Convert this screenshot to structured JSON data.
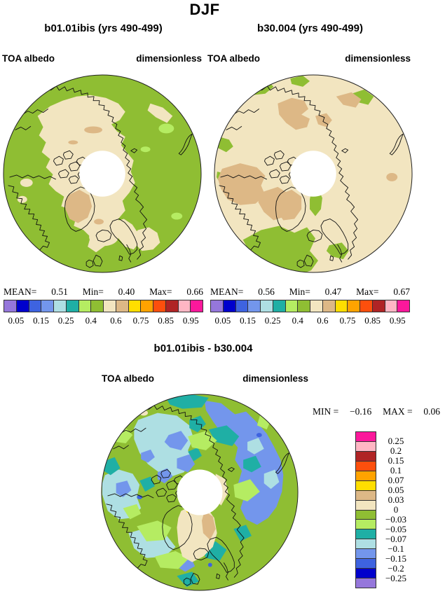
{
  "figure": {
    "title": "DJF"
  },
  "palette": {
    "purple": "#9577DB",
    "dark_blue": "#0000CC",
    "royal_blue": "#3E63E0",
    "cornflower": "#7396EC",
    "pale_cyan": "#AEDFE3",
    "teal": "#1FAFA5",
    "light_green": "#B5EC62",
    "olive_green": "#8FBE33",
    "cream": "#F2E5C0",
    "tan": "#DDB886",
    "yellow": "#FFDE00",
    "orange": "#FFA300",
    "red_orange": "#FD4F0D",
    "dark_red": "#B02425",
    "pink": "#FFB6C4",
    "magenta": "#FB189B"
  },
  "panels": [
    {
      "title": "b01.01ibis (yrs 490-499)",
      "field_label": "TOA albedo",
      "units_label": "dimensionless",
      "stats": {
        "mean_label": "MEAN=",
        "mean": "0.51",
        "min_label": "Min=",
        "min": "0.40",
        "max_label": "Max=",
        "max": "0.66"
      },
      "colorbar": {
        "colors": [
          "#9577DB",
          "#0000CC",
          "#3E63E0",
          "#7396EC",
          "#AEDFE3",
          "#1FAFA5",
          "#B5EC62",
          "#8FBE33",
          "#F2E5C0",
          "#DDB886",
          "#FFDE00",
          "#FFA300",
          "#FD4F0D",
          "#B02425",
          "#FFB6C4",
          "#FB189B"
        ],
        "tick_labels": [
          "0.05",
          "0.15",
          "0.25",
          "0.4",
          "0.6",
          "0.75",
          "0.85",
          "0.95"
        ]
      }
    },
    {
      "title": "b30.004 (yrs 490-499)",
      "field_label": "TOA albedo",
      "units_label": "dimensionless",
      "stats": {
        "mean_label": "MEAN=",
        "mean": "0.56",
        "min_label": "Min=",
        "min": "0.47",
        "max_label": "Max=",
        "max": "0.67"
      },
      "colorbar": {
        "colors": [
          "#9577DB",
          "#0000CC",
          "#3E63E0",
          "#7396EC",
          "#AEDFE3",
          "#1FAFA5",
          "#B5EC62",
          "#8FBE33",
          "#F2E5C0",
          "#DDB886",
          "#FFDE00",
          "#FFA300",
          "#FD4F0D",
          "#B02425",
          "#FFB6C4",
          "#FB189B"
        ],
        "tick_labels": [
          "0.05",
          "0.15",
          "0.25",
          "0.4",
          "0.6",
          "0.75",
          "0.85",
          "0.95"
        ]
      }
    }
  ],
  "diff_panel": {
    "title": "b01.01ibis - b30.004",
    "field_label": "TOA albedo",
    "units_label": "dimensionless",
    "stats": {
      "min_label": "MIN =",
      "min": "−0.16",
      "max_label": "MAX =",
      "max": "0.06"
    },
    "colorbar": {
      "colors": [
        "#FB189B",
        "#FFB6C4",
        "#B02425",
        "#FD4F0D",
        "#FFA300",
        "#FFDE00",
        "#DDB886",
        "#F2E5C0",
        "#8FBE33",
        "#B5EC62",
        "#1FAFA5",
        "#AEDFE3",
        "#7396EC",
        "#3E63E0",
        "#0000CC",
        "#9577DB"
      ],
      "tick_labels": [
        "0.25",
        "0.2",
        "0.15",
        "0.1",
        "0.07",
        "0.05",
        "0.03",
        "0",
        "−0.03",
        "−0.05",
        "−0.07",
        "−0.1",
        "−0.15",
        "−0.2",
        "−0.25"
      ]
    }
  },
  "chart_data": {
    "type": "heatmap",
    "subtype": "polar-stereographic-map-panels",
    "season": "DJF",
    "panels": [
      {
        "name": "b01.01ibis (yrs 490-499)",
        "variable": "TOA albedo",
        "units": "dimensionless",
        "mean": 0.51,
        "min": 0.4,
        "max": 0.66,
        "colorbar_ticks": [
          0.05,
          0.15,
          0.25,
          0.4,
          0.6,
          0.75,
          0.85,
          0.95
        ],
        "legend_position": "bottom"
      },
      {
        "name": "b30.004 (yrs 490-499)",
        "variable": "TOA albedo",
        "units": "dimensionless",
        "mean": 0.56,
        "min": 0.47,
        "max": 0.67,
        "colorbar_ticks": [
          0.05,
          0.15,
          0.25,
          0.4,
          0.6,
          0.75,
          0.85,
          0.95
        ],
        "legend_position": "bottom"
      },
      {
        "name": "b01.01ibis - b30.004",
        "variable": "TOA albedo",
        "units": "dimensionless",
        "min": -0.16,
        "max": 0.06,
        "colorbar_ticks": [
          0.25,
          0.2,
          0.15,
          0.1,
          0.07,
          0.05,
          0.03,
          0,
          -0.03,
          -0.05,
          -0.07,
          -0.1,
          -0.15,
          -0.2,
          -0.25
        ],
        "legend_position": "right"
      }
    ]
  }
}
